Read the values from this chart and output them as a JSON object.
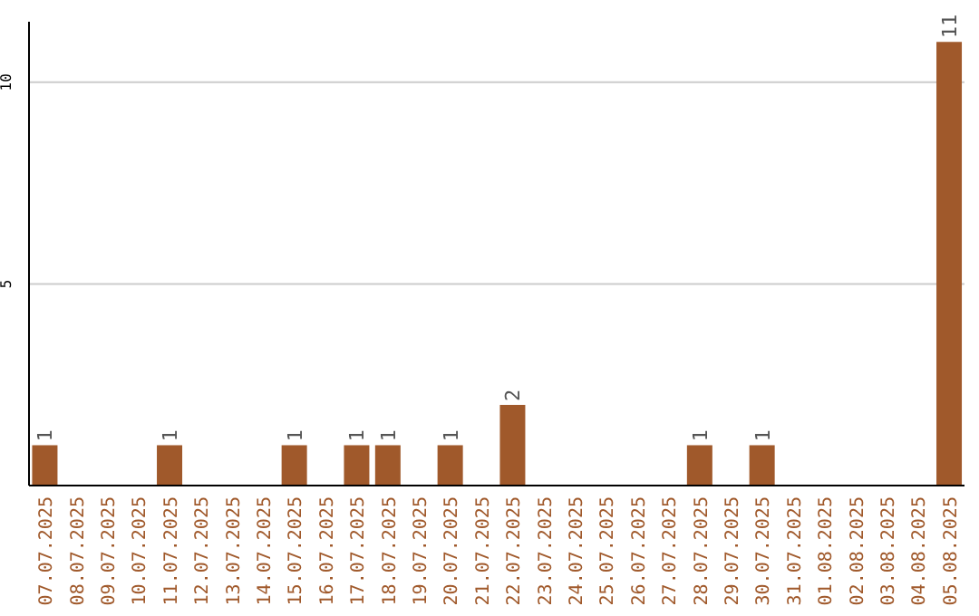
{
  "chart_data": {
    "type": "bar",
    "categories": [
      "07.07.2025",
      "08.07.2025",
      "09.07.2025",
      "10.07.2025",
      "11.07.2025",
      "12.07.2025",
      "13.07.2025",
      "14.07.2025",
      "15.07.2025",
      "16.07.2025",
      "17.07.2025",
      "18.07.2025",
      "19.07.2025",
      "20.07.2025",
      "21.07.2025",
      "22.07.2025",
      "23.07.2025",
      "24.07.2025",
      "25.07.2025",
      "26.07.2025",
      "27.07.2025",
      "28.07.2025",
      "29.07.2025",
      "30.07.2025",
      "31.07.2025",
      "01.08.2025",
      "02.08.2025",
      "03.08.2025",
      "04.08.2025",
      "05.08.2025"
    ],
    "values": [
      1,
      0,
      0,
      0,
      1,
      0,
      0,
      0,
      1,
      0,
      1,
      1,
      0,
      1,
      0,
      2,
      0,
      0,
      0,
      0,
      0,
      1,
      0,
      1,
      0,
      0,
      0,
      0,
      0,
      11
    ],
    "value_labels": [
      "1",
      null,
      null,
      null,
      "1",
      null,
      null,
      null,
      "1",
      null,
      "1",
      "1",
      null,
      "1",
      null,
      "2",
      null,
      null,
      null,
      null,
      null,
      "1",
      null,
      "1",
      null,
      null,
      null,
      null,
      null,
      "11"
    ],
    "color": "#a0592b",
    "ylim": [
      0,
      11.5
    ],
    "yticks": [
      5,
      10
    ],
    "grid": "y"
  }
}
